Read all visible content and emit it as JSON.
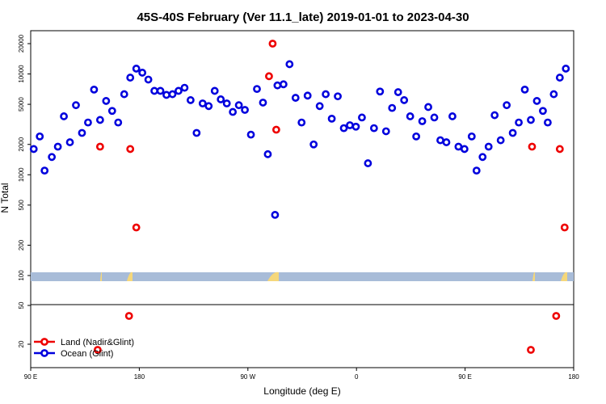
{
  "chart_data": {
    "type": "scatter",
    "title": "45S-40S February (Ver 11.1_late)   2019-01-01 to 2023-04-30",
    "xlabel": "Longitude (deg E)",
    "ylabel": "N Total",
    "y_scale": "log",
    "x_ticks": [
      {
        "value": 90,
        "label": "90 E"
      },
      {
        "value": 180,
        "label": "180"
      },
      {
        "value": 270,
        "label": "90 W"
      },
      {
        "value": 360,
        "label": "0"
      },
      {
        "value": 450,
        "label": "90 E"
      },
      {
        "value": 540,
        "label": "180"
      }
    ],
    "xlim": [
      90,
      540
    ],
    "ylim": [
      15,
      25000
    ],
    "y_ticks_upper": [
      {
        "value": 100,
        "label": "100"
      },
      {
        "value": 200,
        "label": "200"
      },
      {
        "value": 500,
        "label": "500"
      },
      {
        "value": 1000,
        "label": "1000"
      },
      {
        "value": 2000,
        "label": "2000"
      },
      {
        "value": 5000,
        "label": "5000"
      },
      {
        "value": 10000,
        "label": "10000"
      },
      {
        "value": 20000,
        "label": "20000"
      }
    ],
    "y_ticks_lower": [
      {
        "value": 20,
        "label": "20"
      },
      {
        "value": 50,
        "label": "50"
      }
    ],
    "legend": {
      "placement": "bottom-left",
      "entries": [
        {
          "label": "Land (Nadir&Glint)",
          "color": "#ee0000"
        },
        {
          "label": "Ocean (Glint)",
          "color": "#0000dd"
        }
      ]
    },
    "series": [
      {
        "name": "Land (Nadir&Glint)",
        "color": "#ee0000",
        "points": [
          [
            147.5,
            1900
          ],
          [
            145.5,
            17.5
          ],
          [
            171.5,
            39
          ],
          [
            172.5,
            1800
          ],
          [
            177.5,
            300
          ],
          [
            287.5,
            9500
          ],
          [
            290.5,
            20000
          ],
          [
            293.5,
            2800
          ],
          [
            504.5,
            17.5
          ],
          [
            505.5,
            1900
          ],
          [
            525.5,
            39
          ],
          [
            528.5,
            1800
          ],
          [
            532.5,
            300
          ]
        ]
      },
      {
        "name": "Ocean (Glint)",
        "color": "#0000dd",
        "points": [
          [
            92.5,
            1800
          ],
          [
            97.5,
            2400
          ],
          [
            101.5,
            1100
          ],
          [
            107.5,
            1500
          ],
          [
            112.5,
            1900
          ],
          [
            117.5,
            3800
          ],
          [
            122.5,
            2100
          ],
          [
            127.5,
            4900
          ],
          [
            132.5,
            2600
          ],
          [
            137.5,
            3300
          ],
          [
            142.5,
            7000
          ],
          [
            147.5,
            3500
          ],
          [
            152.5,
            5400
          ],
          [
            157.5,
            4300
          ],
          [
            162.5,
            3300
          ],
          [
            167.5,
            6300
          ],
          [
            172.5,
            9200
          ],
          [
            177.5,
            11300
          ],
          [
            182.5,
            10300
          ],
          [
            187.5,
            8800
          ],
          [
            192.5,
            6800
          ],
          [
            197.5,
            6800
          ],
          [
            202.5,
            6200
          ],
          [
            207.5,
            6300
          ],
          [
            212.5,
            6800
          ],
          [
            217.5,
            7300
          ],
          [
            222.5,
            5500
          ],
          [
            227.5,
            2600
          ],
          [
            232.5,
            5100
          ],
          [
            237.5,
            4800
          ],
          [
            242.5,
            6800
          ],
          [
            247.5,
            5600
          ],
          [
            252.5,
            5100
          ],
          [
            257.5,
            4200
          ],
          [
            262.5,
            4900
          ],
          [
            267.5,
            4400
          ],
          [
            272.5,
            2500
          ],
          [
            277.5,
            7100
          ],
          [
            282.5,
            5200
          ],
          [
            286.5,
            1600
          ],
          [
            292.5,
            400
          ],
          [
            294.5,
            7700
          ],
          [
            299.5,
            7900
          ],
          [
            304.5,
            12500
          ],
          [
            309.5,
            5800
          ],
          [
            314.5,
            3300
          ],
          [
            319.5,
            6100
          ],
          [
            324.5,
            2000
          ],
          [
            329.5,
            4800
          ],
          [
            334.5,
            6300
          ],
          [
            339.5,
            3600
          ],
          [
            344.5,
            6000
          ],
          [
            349.5,
            2900
          ],
          [
            354.5,
            3100
          ],
          [
            359.5,
            3000
          ],
          [
            364.5,
            3700
          ],
          [
            369.5,
            1300
          ],
          [
            374.5,
            2900
          ],
          [
            379.5,
            6700
          ],
          [
            384.5,
            2700
          ],
          [
            389.5,
            4600
          ],
          [
            394.5,
            6600
          ],
          [
            399.5,
            5500
          ],
          [
            404.5,
            3800
          ],
          [
            409.5,
            2400
          ],
          [
            414.5,
            3400
          ],
          [
            419.5,
            4700
          ],
          [
            424.5,
            3700
          ],
          [
            429.5,
            2200
          ],
          [
            434.5,
            2100
          ],
          [
            439.5,
            3800
          ],
          [
            444.5,
            1900
          ],
          [
            449.5,
            1800
          ],
          [
            455.5,
            2400
          ],
          [
            459.5,
            1100
          ],
          [
            464.5,
            1500
          ],
          [
            469.5,
            1900
          ],
          [
            474.5,
            3900
          ],
          [
            479.5,
            2200
          ],
          [
            484.5,
            4900
          ],
          [
            489.5,
            2600
          ],
          [
            494.5,
            3300
          ],
          [
            499.5,
            7000
          ],
          [
            504.5,
            3500
          ],
          [
            509.5,
            5400
          ],
          [
            514.5,
            4300
          ],
          [
            518.5,
            3300
          ],
          [
            523.5,
            6300
          ],
          [
            528.5,
            9200
          ],
          [
            533.5,
            11300
          ]
        ]
      }
    ]
  }
}
